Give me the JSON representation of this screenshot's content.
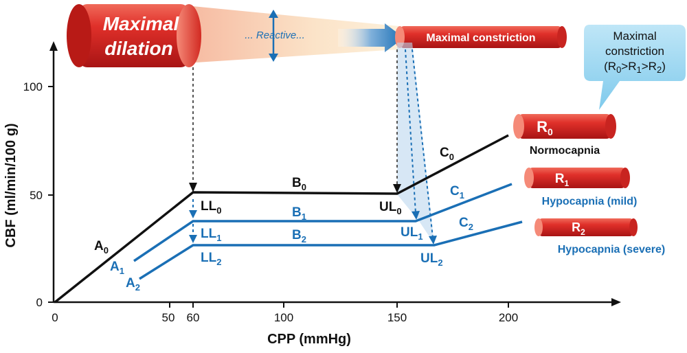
{
  "top": {
    "dilation_line1": "Maximal",
    "dilation_line2": "dilation",
    "reactive": "... Reactive...",
    "constriction": "Maximal constriction"
  },
  "callout": {
    "line1": "Maximal",
    "line2": "constriction",
    "line3": "(R0>R1>R2)"
  },
  "axes": {
    "ylabel": "CBF (ml/min/100 g)",
    "xlabel": "CPP (mmHg)",
    "yticks": [
      "0",
      "50",
      "100"
    ],
    "xticks": [
      "0",
      "50",
      "60",
      "100",
      "150",
      "200"
    ]
  },
  "labels": {
    "A0": "A0",
    "A1": "A1",
    "A2": "A2",
    "B0": "B0",
    "B1": "B1",
    "B2": "B2",
    "C0": "C0",
    "C1": "C1",
    "C2": "C2",
    "LL0": "LL0",
    "LL1": "LL1",
    "LL2": "LL2",
    "UL0": "UL0",
    "UL1": "UL1",
    "UL2": "UL2"
  },
  "conditions": {
    "R0": "R0",
    "R0_name": "Normocapnia",
    "R1": "R1",
    "R1_name": "Hypocapnia (mild)",
    "R2": "R2",
    "R2_name": "Hypocapnia (severe)"
  },
  "colors": {
    "black_curve": "#111111",
    "blue_curve": "#1a6fb5",
    "red_vessel": "#d92525"
  },
  "chart_data": {
    "type": "line",
    "xlabel": "CPP (mmHg)",
    "ylabel": "CBF (ml/min/100 g)",
    "xlim": [
      0,
      250
    ],
    "ylim": [
      0,
      100
    ],
    "series": [
      {
        "name": "Normocapnia",
        "points": [
          [
            0,
            0
          ],
          [
            60,
            51
          ],
          [
            150,
            51
          ],
          [
            200,
            77
          ]
        ]
      },
      {
        "name": "Hypocapnia (mild)",
        "points": [
          [
            35,
            19
          ],
          [
            60,
            37
          ],
          [
            158,
            37
          ],
          [
            200,
            55
          ]
        ]
      },
      {
        "name": "Hypocapnia (severe)",
        "points": [
          [
            37,
            11
          ],
          [
            60,
            26
          ],
          [
            167,
            26
          ],
          [
            210,
            37
          ]
        ]
      }
    ]
  }
}
